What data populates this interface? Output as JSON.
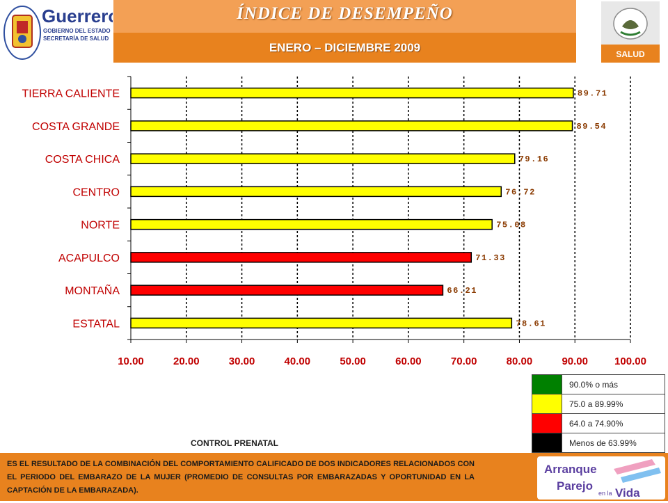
{
  "header": {
    "title": "ÍNDICE DE DESEMPEÑO",
    "subtitle": "ENERO – DICIEMBRE 2009",
    "logo_left": {
      "name": "Guerrero",
      "line1": "GOBIERNO DEL ESTADO",
      "line2": "SECRETARÍA DE SALUD"
    },
    "logo_right": {
      "label": "SALUD"
    }
  },
  "chart_data": {
    "type": "bar",
    "orientation": "horizontal",
    "categories": [
      "TIERRA CALIENTE",
      "COSTA GRANDE",
      "COSTA CHICA",
      "CENTRO",
      "NORTE",
      "ACAPULCO",
      "MONTAÑA",
      "ESTATAL"
    ],
    "values": [
      89.71,
      89.54,
      79.16,
      76.72,
      75.08,
      71.33,
      66.21,
      78.61
    ],
    "value_labels": [
      "89.71",
      "89.54",
      "79.16",
      "76.72",
      "75.08",
      "71.33",
      "66.21",
      "78.61"
    ],
    "colors": [
      "#ffff00",
      "#ffff00",
      "#ffff00",
      "#ffff00",
      "#ffff00",
      "#ff0000",
      "#ff0000",
      "#ffff00"
    ],
    "xlim": [
      10,
      100
    ],
    "xticks": [
      10,
      20,
      30,
      40,
      50,
      60,
      70,
      80,
      90,
      100
    ],
    "xtick_labels": [
      "10.00",
      "20.00",
      "30.00",
      "40.00",
      "50.00",
      "60.00",
      "70.00",
      "80.00",
      "90.00",
      "100.00"
    ],
    "grid": "vertical dotted",
    "title": "",
    "xlabel": "",
    "ylabel": ""
  },
  "legend": [
    {
      "color": "#008000",
      "label": "90.0% o más"
    },
    {
      "color": "#ffff00",
      "label": "75.0 a 89.99%"
    },
    {
      "color": "#ff0000",
      "label": "64.0 a 74.90%"
    },
    {
      "color": "#000000",
      "label": "Menos de 63.99%"
    }
  ],
  "chart_caption": "CONTROL PRENATAL",
  "footer": {
    "text": "ES EL RESULTADO DE LA COMBINACIÓN DEL COMPORTAMIENTO CALIFICADO DE DOS INDICADORES RELACIONADOS CON EL PERIODO DEL EMBARAZO DE LA MUJER (PROMEDIO DE CONSULTAS POR EMBARAZADAS Y OPORTUNIDAD EN LA CAPTACIÓN DE LA EMBARAZADA).",
    "logo": {
      "line1": "Arranque",
      "line2": "Parejo",
      "line3": "en la",
      "line4": "Vida"
    }
  }
}
